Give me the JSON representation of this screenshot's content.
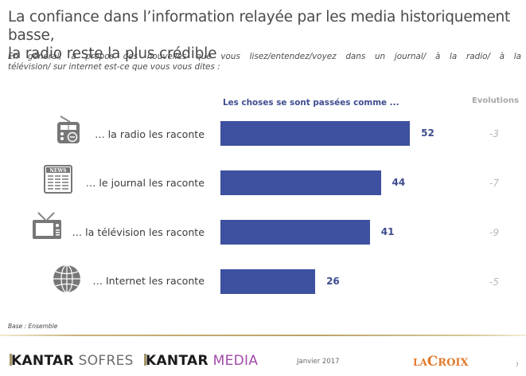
{
  "title": {
    "line1": "La confiance dans l’information relayée par les media historiquement basse,",
    "line2": "la radio reste la plus crédible"
  },
  "question": {
    "line1": "En général, à propos des nouvelles que vous lisez/entendez/voyez dans un journal/ à la radio/ à la",
    "line2": "télévision/ sur internet est-ce que vous vous dites :"
  },
  "chart_data": {
    "type": "bar",
    "orientation": "horizontal",
    "title": "Les choses se sont passées comme ...",
    "categories": [
      "… la radio les raconte",
      "… le journal les raconte",
      "… la télévision les raconte",
      "… Internet les raconte"
    ],
    "values": [
      52,
      44,
      41,
      26
    ],
    "evolutions_header": "Evolutions",
    "evolutions": [
      "-3",
      "-7",
      "-9",
      "-5"
    ],
    "icons": [
      "radio-icon",
      "newspaper-icon",
      "television-icon",
      "globe-icon"
    ],
    "bar_color": "#3e50a0",
    "xlim": [
      0,
      100
    ],
    "grid": false,
    "legend": "none",
    "xlabel": "",
    "ylabel": ""
  },
  "base_note": "Base : Ensemble",
  "footer": {
    "logo_sofres": {
      "bold": "KANTAR",
      "light": "SOFRES"
    },
    "logo_media": {
      "bold": "KANTAR",
      "light": "MEDIA"
    },
    "date": "Janvier 2017",
    "lacroix": {
      "la": "LA",
      "c": "C",
      "rest": "ROIX"
    },
    "page": "7"
  },
  "colors": {
    "bar": "#3e50a0",
    "value_label": "#3e4c8f",
    "evolution": "#b8b8b8",
    "lacroix": "#e17a2c",
    "media": "#a04aa8"
  }
}
